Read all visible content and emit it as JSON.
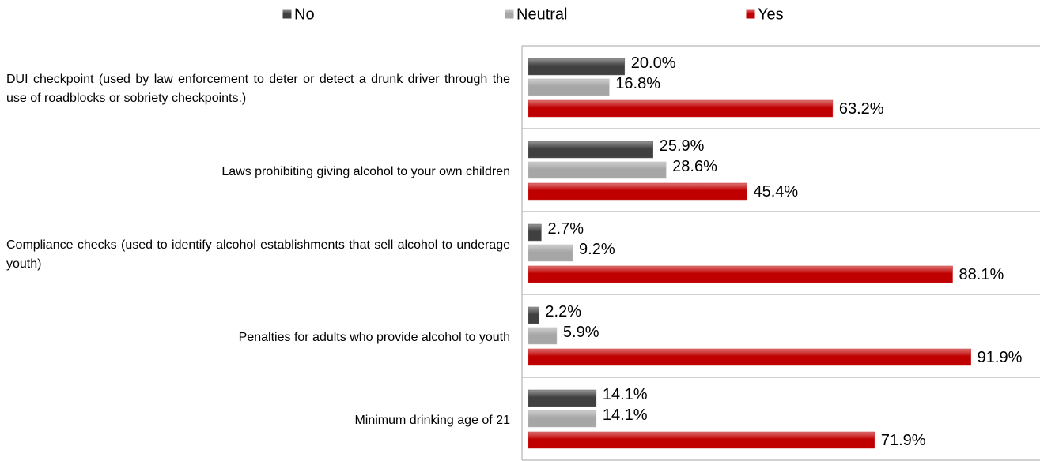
{
  "chart_data": {
    "type": "bar",
    "orientation": "horizontal",
    "categories": [
      "DUI checkpoint (used by law enforcement to deter or detect a drunk driver through the use of roadblocks or sobriety checkpoints.)",
      "Laws prohibiting giving alcohol to your own children",
      "Compliance checks (used to identify alcohol establishments that sell alcohol to underage youth)",
      "Penalties for adults who provide alcohol to youth",
      "Minimum drinking age of 21"
    ],
    "series": [
      {
        "name": "No",
        "color": "#404040",
        "values": [
          20.0,
          25.9,
          2.7,
          2.2,
          14.1
        ],
        "value_labels": [
          "20.0%",
          "25.9%",
          "2.7%",
          "2.2%",
          "14.1%"
        ]
      },
      {
        "name": "Neutral",
        "color": "#a6a6a6",
        "values": [
          16.8,
          28.6,
          9.2,
          5.9,
          14.1
        ],
        "value_labels": [
          "16.8%",
          "28.6%",
          "9.2%",
          "5.9%",
          "14.1%"
        ]
      },
      {
        "name": "Yes",
        "color": "#c00000",
        "values": [
          63.2,
          45.4,
          88.1,
          91.9,
          71.9
        ],
        "value_labels": [
          "63.2%",
          "45.4%",
          "88.1%",
          "91.9%",
          "71.9%"
        ]
      }
    ],
    "xlim": [
      0,
      100
    ],
    "legend": "top"
  }
}
